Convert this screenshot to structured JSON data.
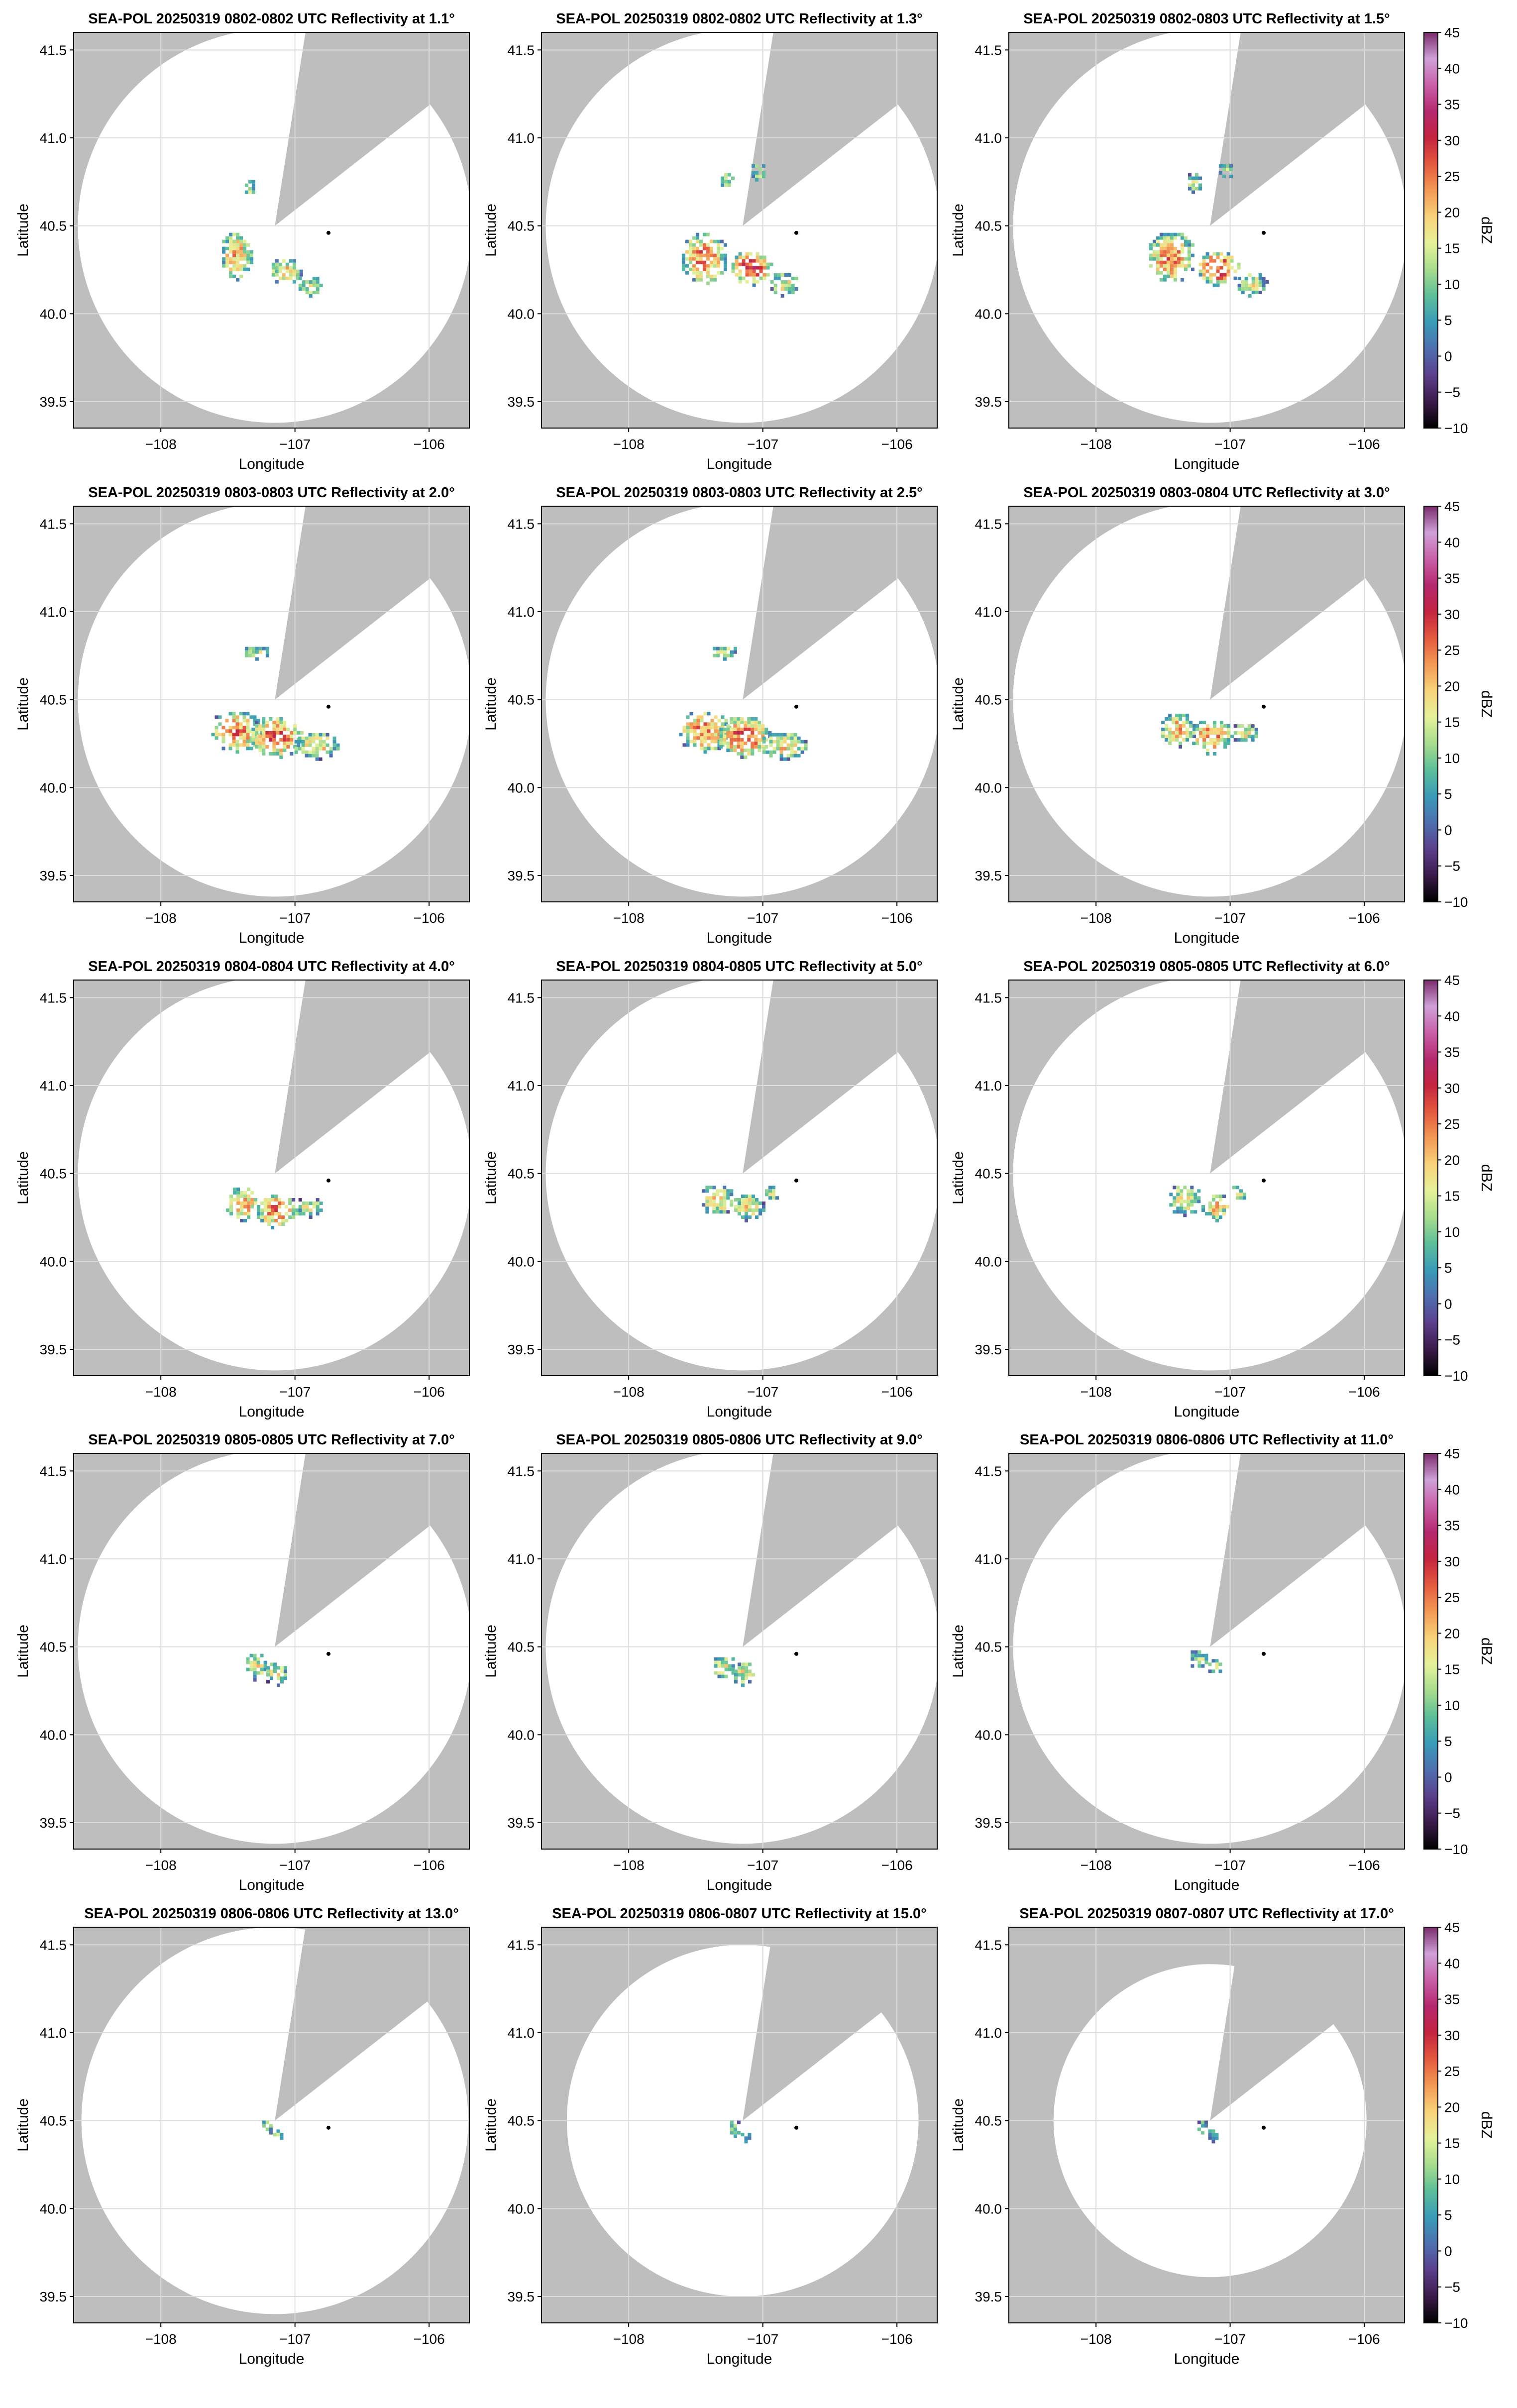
{
  "figure": {
    "bg_color": "#bebebe",
    "coverage_color": "#ffffff",
    "grid_color": "#dcdcdc",
    "radar_marker_color": "#000000"
  },
  "colorbar": {
    "label": "dBZ",
    "ticks": [
      "45",
      "40",
      "35",
      "30",
      "25",
      "20",
      "15",
      "10",
      "5",
      "0",
      "−5",
      "−10"
    ],
    "range": [
      -10,
      45
    ],
    "colormap": [
      "#000000",
      "#3b1a4a",
      "#5b3f8c",
      "#4e6fb0",
      "#3a9bb8",
      "#5cbf9a",
      "#a7dc8d",
      "#e6f29a",
      "#f8d37a",
      "#f39a54",
      "#e45a3e",
      "#c4243f",
      "#b5286e",
      "#c960a8",
      "#cfa1d8",
      "#7a2a6a"
    ]
  },
  "axes": {
    "xlabel": "Longitude",
    "ylabel": "Latitude",
    "xticks": [
      "−108",
      "−107",
      "−106"
    ],
    "yticks": [
      "41.5",
      "41.0",
      "40.5",
      "40.0",
      "39.5"
    ]
  },
  "chart_data": [
    {
      "type": "heatmap",
      "title": "SEA-POL 20250319 0802-0802 UTC Reflectivity at 1.1°",
      "elevation_deg": 1.1,
      "xlim": [
        -108.65,
        -105.7
      ],
      "ylim": [
        39.35,
        41.6
      ],
      "radar_site": [
        -107.15,
        40.5
      ],
      "marker": [
        -106.75,
        40.46
      ],
      "max_range_lat_deg": 1.12,
      "storm": "wide-1"
    },
    {
      "type": "heatmap",
      "title": "SEA-POL 20250319 0802-0802 UTC Reflectivity at 1.3°",
      "elevation_deg": 1.3,
      "xlim": [
        -108.65,
        -105.7
      ],
      "ylim": [
        39.35,
        41.6
      ],
      "radar_site": [
        -107.15,
        40.5
      ],
      "marker": [
        -106.75,
        40.46
      ],
      "max_range_lat_deg": 1.12,
      "storm": "wide-2"
    },
    {
      "type": "heatmap",
      "title": "SEA-POL 20250319 0802-0803 UTC Reflectivity at 1.5°",
      "elevation_deg": 1.5,
      "xlim": [
        -108.65,
        -105.7
      ],
      "ylim": [
        39.35,
        41.6
      ],
      "radar_site": [
        -107.15,
        40.5
      ],
      "marker": [
        -106.75,
        40.46
      ],
      "max_range_lat_deg": 1.12,
      "storm": "wide-2"
    },
    {
      "type": "heatmap",
      "title": "SEA-POL 20250319 0803-0803 UTC Reflectivity at 2.0°",
      "elevation_deg": 2.0,
      "xlim": [
        -108.65,
        -105.7
      ],
      "ylim": [
        39.35,
        41.6
      ],
      "radar_site": [
        -107.15,
        40.5
      ],
      "marker": [
        -106.75,
        40.46
      ],
      "max_range_lat_deg": 1.12,
      "storm": "band"
    },
    {
      "type": "heatmap",
      "title": "SEA-POL 20250319 0803-0803 UTC Reflectivity at 2.5°",
      "elevation_deg": 2.5,
      "xlim": [
        -108.65,
        -105.7
      ],
      "ylim": [
        39.35,
        41.6
      ],
      "radar_site": [
        -107.15,
        40.5
      ],
      "marker": [
        -106.75,
        40.46
      ],
      "max_range_lat_deg": 1.12,
      "storm": "band"
    },
    {
      "type": "heatmap",
      "title": "SEA-POL 20250319 0803-0804 UTC Reflectivity at 3.0°",
      "elevation_deg": 3.0,
      "xlim": [
        -108.65,
        -105.7
      ],
      "ylim": [
        39.35,
        41.6
      ],
      "radar_site": [
        -107.15,
        40.5
      ],
      "marker": [
        -106.75,
        40.46
      ],
      "max_range_lat_deg": 1.12,
      "storm": "band-small"
    },
    {
      "type": "heatmap",
      "title": "SEA-POL 20250319 0804-0804 UTC Reflectivity at 4.0°",
      "elevation_deg": 4.0,
      "xlim": [
        -108.65,
        -105.7
      ],
      "ylim": [
        39.35,
        41.6
      ],
      "radar_site": [
        -107.15,
        40.5
      ],
      "marker": [
        -106.75,
        40.46
      ],
      "max_range_lat_deg": 1.12,
      "storm": "band-small"
    },
    {
      "type": "heatmap",
      "title": "SEA-POL 20250319 0804-0805 UTC Reflectivity at 5.0°",
      "elevation_deg": 5.0,
      "xlim": [
        -108.65,
        -105.7
      ],
      "ylim": [
        39.35,
        41.6
      ],
      "radar_site": [
        -107.15,
        40.5
      ],
      "marker": [
        -106.75,
        40.46
      ],
      "max_range_lat_deg": 1.12,
      "storm": "arc-large"
    },
    {
      "type": "heatmap",
      "title": "SEA-POL 20250319 0805-0805 UTC Reflectivity at 6.0°",
      "elevation_deg": 6.0,
      "xlim": [
        -108.65,
        -105.7
      ],
      "ylim": [
        39.35,
        41.6
      ],
      "radar_site": [
        -107.15,
        40.5
      ],
      "marker": [
        -106.75,
        40.46
      ],
      "max_range_lat_deg": 1.12,
      "storm": "arc-large"
    },
    {
      "type": "heatmap",
      "title": "SEA-POL 20250319 0805-0805 UTC Reflectivity at 7.0°",
      "elevation_deg": 7.0,
      "xlim": [
        -108.65,
        -105.7
      ],
      "ylim": [
        39.35,
        41.6
      ],
      "radar_site": [
        -107.15,
        40.5
      ],
      "marker": [
        -106.75,
        40.46
      ],
      "max_range_lat_deg": 1.12,
      "storm": "arc-med"
    },
    {
      "type": "heatmap",
      "title": "SEA-POL 20250319 0805-0806 UTC Reflectivity at 9.0°",
      "elevation_deg": 9.0,
      "xlim": [
        -108.65,
        -105.7
      ],
      "ylim": [
        39.35,
        41.6
      ],
      "radar_site": [
        -107.15,
        40.5
      ],
      "marker": [
        -106.75,
        40.46
      ],
      "max_range_lat_deg": 1.12,
      "storm": "arc-med"
    },
    {
      "type": "heatmap",
      "title": "SEA-POL 20250319 0806-0806 UTC Reflectivity at 11.0°",
      "elevation_deg": 11.0,
      "xlim": [
        -108.65,
        -105.7
      ],
      "ylim": [
        39.35,
        41.6
      ],
      "radar_site": [
        -107.15,
        40.5
      ],
      "marker": [
        -106.75,
        40.46
      ],
      "max_range_lat_deg": 1.12,
      "storm": "arc-small"
    },
    {
      "type": "heatmap",
      "title": "SEA-POL 20250319 0806-0806 UTC Reflectivity at 13.0°",
      "elevation_deg": 13.0,
      "xlim": [
        -108.65,
        -105.7
      ],
      "ylim": [
        39.35,
        41.6
      ],
      "radar_site": [
        -107.15,
        40.5
      ],
      "marker": [
        -106.75,
        40.46
      ],
      "max_range_lat_deg": 1.1,
      "storm": "hook"
    },
    {
      "type": "heatmap",
      "title": "SEA-POL 20250319 0806-0807 UTC Reflectivity at 15.0°",
      "elevation_deg": 15.0,
      "xlim": [
        -108.65,
        -105.7
      ],
      "ylim": [
        39.35,
        41.6
      ],
      "radar_site": [
        -107.15,
        40.5
      ],
      "marker": [
        -106.75,
        40.46
      ],
      "max_range_lat_deg": 1.0,
      "storm": "hook"
    },
    {
      "type": "heatmap",
      "title": "SEA-POL 20250319 0807-0807 UTC Reflectivity at 17.0°",
      "elevation_deg": 17.0,
      "xlim": [
        -108.65,
        -105.7
      ],
      "ylim": [
        39.35,
        41.6
      ],
      "radar_site": [
        -107.15,
        40.5
      ],
      "marker": [
        -106.75,
        40.46
      ],
      "max_range_lat_deg": 0.89,
      "storm": "hook"
    }
  ]
}
